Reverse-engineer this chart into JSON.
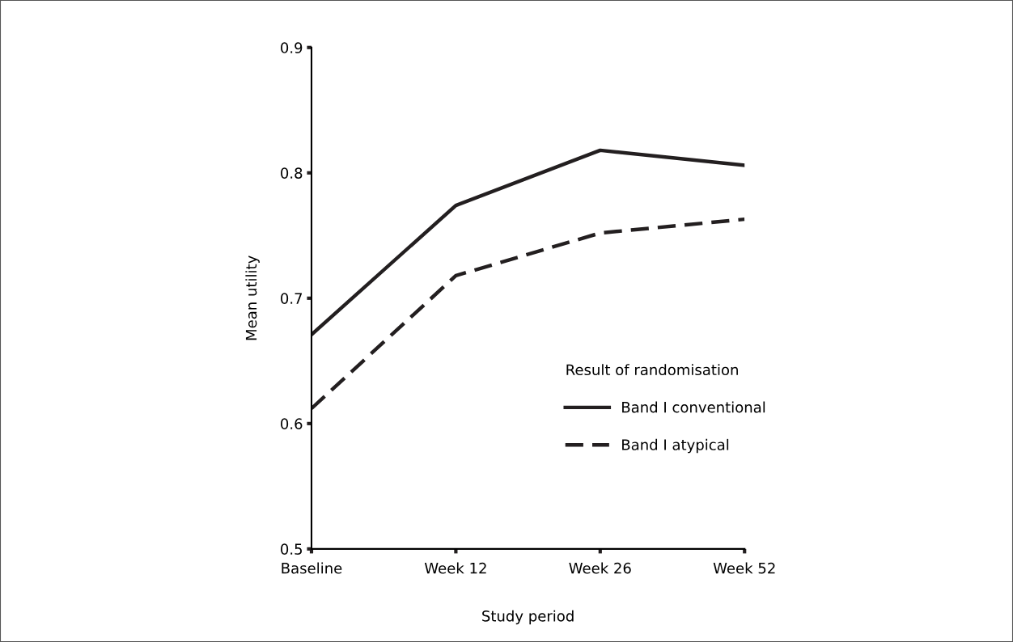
{
  "chart_data": {
    "type": "line",
    "xlabel": "Study period",
    "ylabel": "Mean utility",
    "legend_title": "Result of randomisation",
    "categories": [
      "Baseline",
      "Week 12",
      "Week 26",
      "Week 52"
    ],
    "series": [
      {
        "name": "Band I conventional",
        "color": "#231f20",
        "values": [
          0.671,
          0.774,
          0.818,
          0.806
        ],
        "line_style": "solid"
      },
      {
        "name": "Band I atypical",
        "color": "#231f20",
        "values": [
          0.612,
          0.718,
          0.752,
          0.763
        ],
        "line_style": "dashed"
      }
    ],
    "ylim": [
      0.5,
      0.9
    ],
    "yticks": [
      0.5,
      0.6,
      0.7,
      0.8,
      0.9
    ],
    "grid": false,
    "legend": "center right",
    "marker": "none"
  }
}
